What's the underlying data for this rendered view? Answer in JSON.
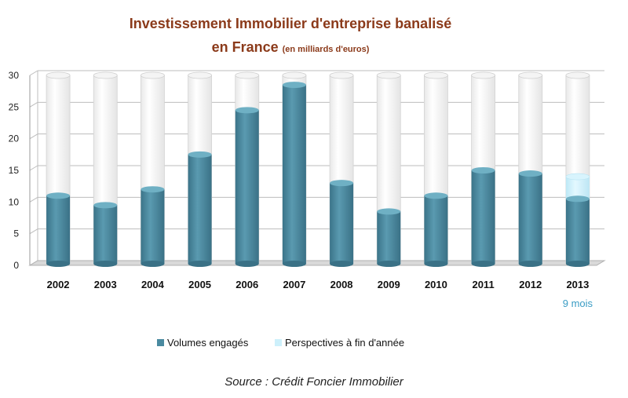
{
  "chart_data": {
    "type": "bar",
    "title": "Investissement  Immobilier  d'entreprise banalisé",
    "subtitle_main": "en  France",
    "subtitle_small": "(en milliards d'euros)",
    "categories": [
      "2002",
      "2003",
      "2004",
      "2005",
      "2006",
      "2007",
      "2008",
      "2009",
      "2010",
      "2011",
      "2012",
      "2013"
    ],
    "category_note": "9 mois",
    "series": [
      {
        "name": "Volumes engagés",
        "color": "#4a8aa0",
        "values": [
          11,
          9.5,
          12,
          17.5,
          24.5,
          28.5,
          13,
          8.5,
          11,
          15,
          14.5,
          10.5
        ]
      },
      {
        "name": "Perspectives à fin d'année",
        "color": "#cdf0fb",
        "values": [
          0,
          0,
          0,
          0,
          0,
          0,
          0,
          0,
          0,
          0,
          0,
          3.5
        ]
      }
    ],
    "ylim": [
      0,
      30
    ],
    "yticks": [
      0,
      5,
      10,
      15,
      20,
      25,
      30
    ],
    "grid": true,
    "legend_position": "bottom",
    "source": "Source : Crédit Foncier Immobilier"
  }
}
